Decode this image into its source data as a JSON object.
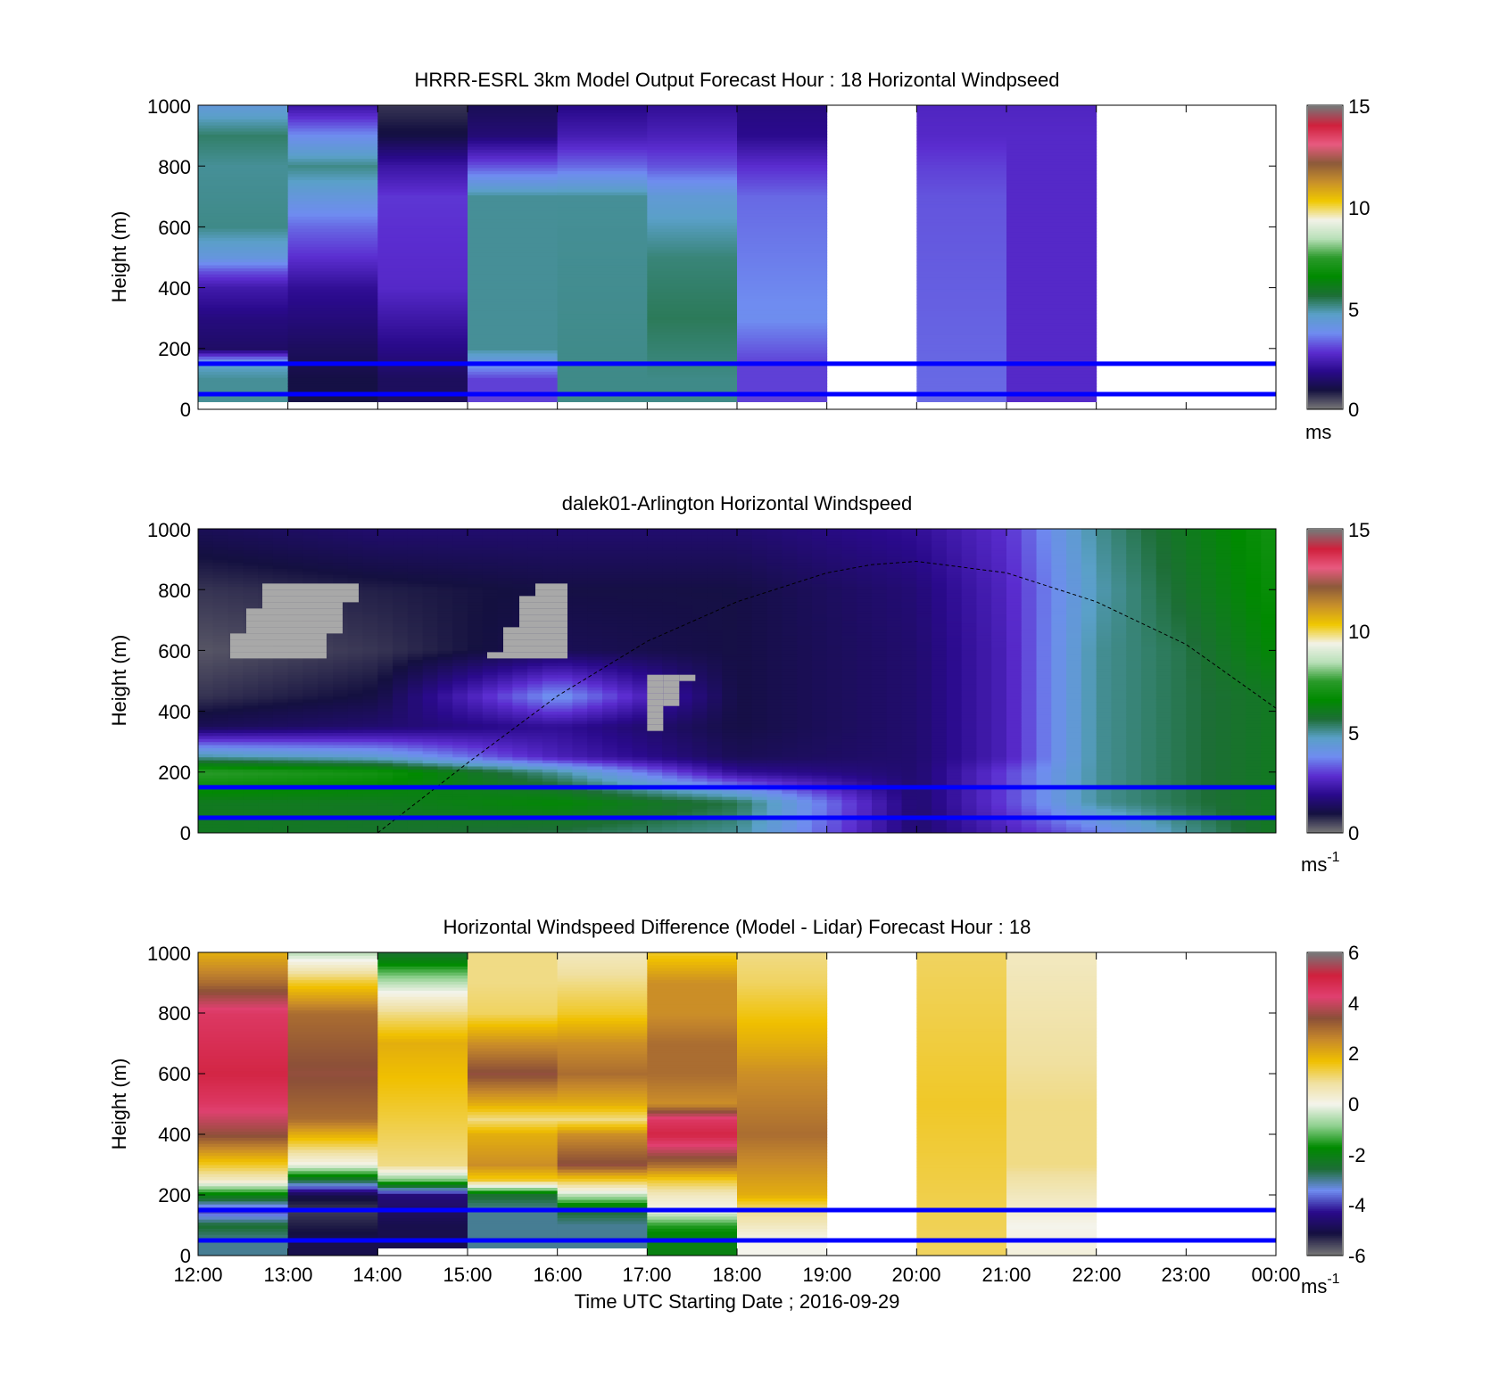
{
  "figure": {
    "xlabel": "Time UTC  Starting Date ; 2016-09-29"
  },
  "x_tick_labels": [
    "12:00",
    "13:00",
    "14:00",
    "15:00",
    "16:00",
    "17:00",
    "18:00",
    "19:00",
    "20:00",
    "21:00",
    "22:00",
    "23:00",
    "00:00"
  ],
  "colors": {
    "speed_scale": [
      "#777777",
      "#141040",
      "#2a0a8c",
      "#5b2dd0",
      "#6f8cf0",
      "#5aa0c8",
      "#1d6e36",
      "#008a00",
      "#2a9a2a",
      "#b8e0b8",
      "#f2f2e8",
      "#f0c800",
      "#c8902a",
      "#8c5a3a",
      "#e85a80",
      "#d0203c",
      "#777777"
    ],
    "diff_scale": [
      "#777777",
      "#141040",
      "#2a0a8c",
      "#6f8cf0",
      "#1d6e36",
      "#008a00",
      "#8fd08f",
      "#f4f4ec",
      "#f0e0a0",
      "#f0c000",
      "#c88a2a",
      "#8c5038",
      "#e04070",
      "#d0203c",
      "#777777"
    ],
    "reference_lines": "#0000ff",
    "missing": "#a8a8a8"
  },
  "reference_heights_m": [
    50,
    150
  ],
  "panels": [
    {
      "title": "HRRR-ESRL 3km Model Output   Forecast Hour : 18 Horizontal Windpseed",
      "ylabel": "Height (m)",
      "y_tick_labels": [
        "0",
        "200",
        "400",
        "600",
        "800",
        "1000"
      ],
      "colorbar": {
        "ticks": [
          "0",
          "5",
          "10",
          "15"
        ],
        "unit": "ms",
        "unit_sup": ""
      }
    },
    {
      "title": "dalek01-Arlington  Horizontal Windspeed",
      "ylabel": "Height (m)",
      "y_tick_labels": [
        "0",
        "200",
        "400",
        "600",
        "800",
        "1000"
      ],
      "colorbar": {
        "ticks": [
          "0",
          "5",
          "10",
          "15"
        ],
        "unit": "ms",
        "unit_sup": "-1"
      }
    },
    {
      "title": "Horizontal Windspeed Difference (Model - Lidar) Forecast Hour : 18",
      "ylabel": "Height (m)",
      "y_tick_labels": [
        "0",
        "200",
        "400",
        "600",
        "800",
        "1000"
      ],
      "colorbar": {
        "ticks": [
          "-6",
          "-4",
          "-2",
          "0",
          "2",
          "4",
          "6"
        ],
        "unit": "ms",
        "unit_sup": "-1"
      }
    }
  ],
  "chart_data": [
    {
      "type": "heatmap",
      "title": "HRRR-ESRL 3km Model Output   Forecast Hour : 18 Horizontal Windpseed",
      "ylabel": "Height (m)",
      "x_range": [
        "12:00",
        "00:00"
      ],
      "ylim": [
        0,
        1000
      ],
      "clim": [
        0,
        15
      ],
      "unit": "ms",
      "reference_lines_m": [
        50,
        150
      ],
      "columns": [
        {
          "start": "12:00",
          "end": "13:00",
          "heights_m": [
            1000,
            900,
            800,
            600,
            500,
            450,
            400,
            300,
            200,
            150,
            100
          ],
          "values": [
            4.3,
            5.3,
            5.0,
            5.1,
            4.2,
            3.1,
            2.3,
            1.7,
            1.4,
            4.6,
            5.0
          ]
        },
        {
          "start": "13:00",
          "end": "14:00",
          "heights_m": [
            1000,
            900,
            800,
            600,
            500,
            400,
            200,
            100
          ],
          "values": [
            2.2,
            3.8,
            5.1,
            3.4,
            2.8,
            2.0,
            1.3,
            1.0
          ]
        },
        {
          "start": "14:00",
          "end": "15:00",
          "heights_m": [
            1000,
            900,
            800,
            700,
            400,
            200,
            100
          ],
          "values": [
            0.6,
            1.0,
            2.2,
            2.9,
            2.7,
            1.8,
            1.3
          ]
        },
        {
          "start": "15:00",
          "end": "16:00",
          "heights_m": [
            1000,
            900,
            800,
            700,
            200,
            100
          ],
          "values": [
            1.2,
            1.6,
            3.2,
            5.0,
            5.0,
            3.0
          ]
        },
        {
          "start": "16:00",
          "end": "17:00",
          "heights_m": [
            1000,
            900,
            800,
            700,
            100
          ],
          "values": [
            1.8,
            2.4,
            3.4,
            5.0,
            5.1
          ]
        },
        {
          "start": "17:00",
          "end": "18:00",
          "heights_m": [
            1000,
            900,
            800,
            700,
            500,
            300,
            100
          ],
          "values": [
            2.0,
            2.5,
            3.2,
            4.4,
            5.2,
            5.4,
            5.1
          ]
        },
        {
          "start": "18:00",
          "end": "19:00",
          "heights_m": [
            1000,
            900,
            800,
            700,
            300,
            150
          ],
          "values": [
            1.7,
            1.9,
            2.8,
            3.4,
            3.8,
            3.0
          ]
        },
        {
          "start": "20:00",
          "end": "21:00",
          "heights_m": [
            1000,
            900,
            800,
            700,
            100
          ],
          "values": [
            2.6,
            2.7,
            3.0,
            3.2,
            3.4
          ]
        },
        {
          "start": "21:00",
          "end": "22:00",
          "heights_m": [
            1000,
            900,
            100
          ],
          "values": [
            2.6,
            2.7,
            2.7
          ]
        }
      ]
    },
    {
      "type": "heatmap",
      "title": "dalek01-Arlington  Horizontal Windspeed",
      "ylabel": "Height (m)",
      "x_range": [
        "12:00",
        "00:00"
      ],
      "ylim": [
        0,
        1000
      ],
      "clim": [
        0,
        15
      ],
      "unit": "ms-1",
      "reference_lines_m": [
        50,
        150
      ],
      "profiles": {
        "times_utc": [
          "12:00",
          "14:00",
          "16:00",
          "18:00",
          "20:00",
          "21:00",
          "22:00",
          "23:00",
          "24:00"
        ],
        "heights_m": [
          0,
          100,
          200,
          250,
          350,
          450,
          600,
          800,
          1000
        ],
        "values": [
          [
            6.0,
            6.0,
            7.5,
            5.0,
            1.2,
            0.6,
            0.3,
            0.6,
            1.2
          ],
          [
            5.8,
            6.0,
            7.0,
            4.5,
            1.5,
            1.0,
            0.6,
            0.8,
            1.5
          ],
          [
            5.5,
            6.5,
            5.0,
            2.5,
            2.0,
            4.0,
            1.2,
            1.0,
            1.5
          ],
          [
            5.0,
            5.5,
            2.0,
            1.2,
            1.0,
            1.0,
            1.0,
            1.0,
            1.5
          ],
          [
            1.5,
            1.5,
            1.5,
            1.5,
            1.5,
            1.5,
            1.5,
            1.6,
            2.0
          ],
          [
            2.5,
            3.0,
            3.0,
            2.5,
            2.5,
            2.5,
            2.5,
            2.6,
            2.8
          ],
          [
            3.5,
            5.0,
            5.0,
            5.0,
            5.0,
            5.0,
            5.0,
            4.8,
            5.0
          ],
          [
            5.0,
            5.5,
            5.5,
            5.5,
            5.5,
            5.5,
            5.5,
            5.8,
            6.0
          ],
          [
            6.0,
            6.0,
            6.0,
            6.0,
            6.0,
            6.0,
            6.5,
            6.8,
            7.0
          ]
        ]
      },
      "missing_data_regions": [
        {
          "start": "12:00",
          "end": "16:00",
          "y_range_m": [
            580,
            820
          ]
        },
        {
          "start": "17:00",
          "end": "19:00",
          "y_range_m": [
            350,
            520
          ]
        }
      ],
      "overlay": {
        "style": "dashed",
        "points": [
          [
            "14:00",
            0
          ],
          [
            "15:00",
            230
          ],
          [
            "16:00",
            450
          ],
          [
            "17:00",
            630
          ],
          [
            "18:00",
            760
          ],
          [
            "19:00",
            855
          ],
          [
            "19:30",
            882
          ],
          [
            "20:00",
            893
          ],
          [
            "21:00",
            855
          ],
          [
            "22:00",
            760
          ],
          [
            "23:00",
            620
          ],
          [
            "00:00",
            410
          ]
        ]
      }
    },
    {
      "type": "heatmap",
      "title": "Horizontal Windspeed Difference (Model - Lidar) Forecast Hour : 18",
      "xlabel": "Time UTC  Starting Date ; 2016-09-29",
      "ylabel": "Height (m)",
      "x_range": [
        "12:00",
        "00:00"
      ],
      "ylim": [
        0,
        1000
      ],
      "clim": [
        -6,
        6
      ],
      "unit": "ms-1",
      "reference_lines_m": [
        50,
        150
      ],
      "columns": [
        {
          "start": "12:00",
          "end": "13:00",
          "heights_m": [
            1000,
            900,
            800,
            600,
            500,
            400,
            300,
            250,
            200,
            150,
            100,
            50
          ],
          "values": [
            2.0,
            3.0,
            4.5,
            5.0,
            4.5,
            3.5,
            1.5,
            0.5,
            -2.0,
            -4.0,
            -2.5,
            -3.0
          ]
        },
        {
          "start": "13:00",
          "end": "14:00",
          "heights_m": [
            1000,
            950,
            900,
            800,
            600,
            450,
            350,
            300,
            250,
            200,
            150,
            50
          ],
          "values": [
            -0.5,
            0.5,
            1.5,
            3.0,
            3.5,
            3.0,
            1.0,
            0.0,
            -2.5,
            -5.0,
            -5.5,
            -5.0
          ]
        },
        {
          "start": "14:00",
          "end": "15:00",
          "heights_m": [
            1000,
            950,
            900,
            850,
            800,
            700,
            500,
            300,
            250,
            200,
            100
          ],
          "values": [
            -2.5,
            -1.5,
            -0.5,
            0.3,
            1.0,
            2.0,
            1.5,
            1.0,
            -1.0,
            -4.5,
            -5.0
          ]
        },
        {
          "start": "15:00",
          "end": "16:00",
          "heights_m": [
            1000,
            900,
            800,
            700,
            600,
            500,
            450,
            400,
            300,
            250,
            200,
            150,
            100
          ],
          "values": [
            1.0,
            1.0,
            1.2,
            2.5,
            3.5,
            2.0,
            1.0,
            2.0,
            2.5,
            1.5,
            -2.5,
            -3.0,
            -3.0
          ]
        },
        {
          "start": "16:00",
          "end": "17:00",
          "heights_m": [
            1000,
            900,
            800,
            700,
            600,
            500,
            450,
            400,
            300,
            250,
            200,
            150,
            100
          ],
          "values": [
            0.5,
            1.0,
            1.5,
            2.5,
            3.0,
            2.0,
            1.0,
            2.5,
            3.5,
            1.5,
            -0.5,
            -2.5,
            -3.0
          ]
        },
        {
          "start": "17:00",
          "end": "18:00",
          "heights_m": [
            1000,
            900,
            800,
            700,
            600,
            500,
            450,
            400,
            300,
            250,
            200,
            150,
            100,
            50
          ],
          "values": [
            1.5,
            2.5,
            2.5,
            3.0,
            3.0,
            2.5,
            4.5,
            5.0,
            3.0,
            1.5,
            0.5,
            0.0,
            -1.5,
            -2.0
          ]
        },
        {
          "start": "18:00",
          "end": "19:00",
          "heights_m": [
            1000,
            900,
            700,
            600,
            400,
            300,
            200,
            150,
            100,
            50
          ],
          "values": [
            1.0,
            1.2,
            2.0,
            2.5,
            3.0,
            2.5,
            2.0,
            1.0,
            0.5,
            0.0
          ]
        },
        {
          "start": "20:00",
          "end": "21:00",
          "heights_m": [
            1000,
            500,
            0
          ],
          "values": [
            1.2,
            1.5,
            1.2
          ]
        },
        {
          "start": "21:00",
          "end": "22:00",
          "heights_m": [
            1000,
            800,
            500,
            300,
            150,
            100,
            0
          ],
          "values": [
            0.5,
            0.7,
            1.0,
            1.0,
            0.3,
            0.0,
            0.2
          ]
        }
      ]
    }
  ]
}
